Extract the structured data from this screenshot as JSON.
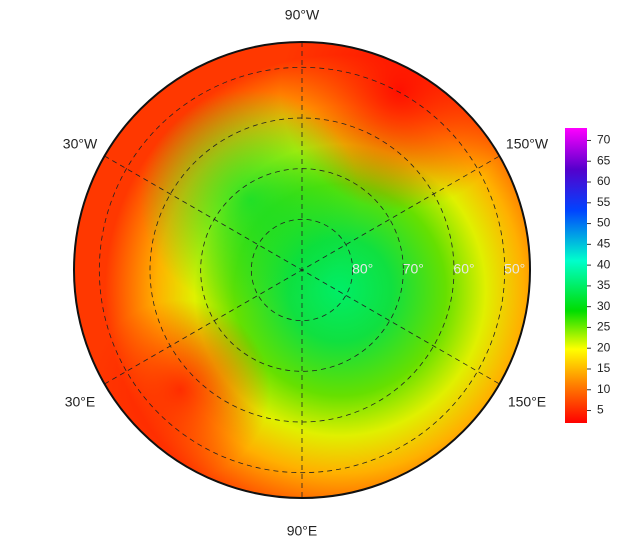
{
  "map": {
    "longitude_labels": [
      "90°W",
      "30°W",
      "150°W",
      "30°E",
      "150°E",
      "90°E"
    ],
    "latitude_labels": [
      {
        "value": 80,
        "label": "80°"
      },
      {
        "value": 70,
        "label": "70°"
      },
      {
        "value": 60,
        "label": "60°"
      },
      {
        "value": 50,
        "label": "50°"
      }
    ],
    "lat_range": [
      45,
      90
    ],
    "colorbar": {
      "lim": [
        2,
        73
      ],
      "ticks": [
        5,
        10,
        15,
        20,
        25,
        30,
        35,
        40,
        45,
        50,
        55,
        60,
        65,
        70
      ]
    }
  }
}
